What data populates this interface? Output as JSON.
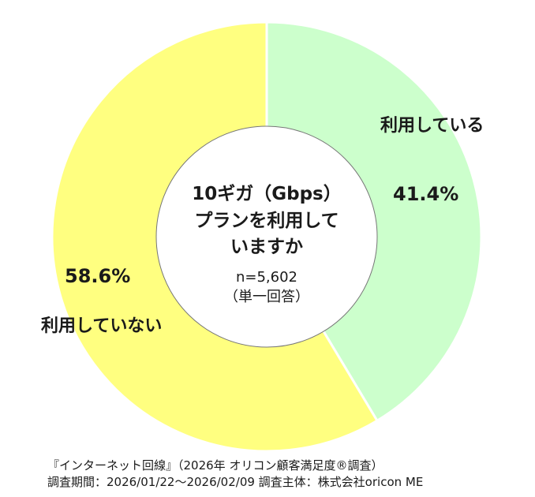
{
  "chart_data": {
    "type": "pie",
    "categories": [
      "利用している",
      "利用していない"
    ],
    "values": [
      41.4,
      58.6
    ],
    "value_labels": [
      "41.4%",
      "58.6%"
    ],
    "colors": [
      "#ccffcc",
      "#ffff80"
    ],
    "start": "top, clockwise",
    "center": {
      "question_lines": [
        "10ギガ（Gbps）",
        "プランを利用して",
        "いますか"
      ],
      "n": "n=5,602",
      "answer_type": "（単一回答）"
    }
  },
  "footer": {
    "line1": "『インターネット回線』（2026年  オリコン顧客満足度®調査）",
    "line2": "調査期間：2026/01/22～2026/02/09  調査主体：株式会社oricon  ME"
  }
}
